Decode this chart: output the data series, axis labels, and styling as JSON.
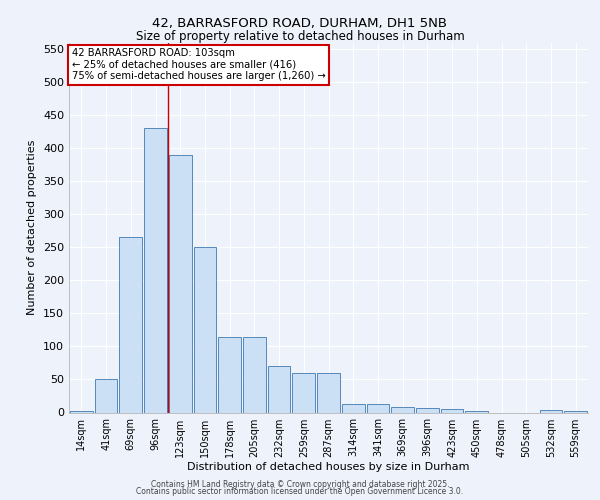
{
  "title_line1": "42, BARRASFORD ROAD, DURHAM, DH1 5NB",
  "title_line2": "Size of property relative to detached houses in Durham",
  "xlabel": "Distribution of detached houses by size in Durham",
  "ylabel": "Number of detached properties",
  "bar_labels": [
    "14sqm",
    "41sqm",
    "69sqm",
    "96sqm",
    "123sqm",
    "150sqm",
    "178sqm",
    "205sqm",
    "232sqm",
    "259sqm",
    "287sqm",
    "314sqm",
    "341sqm",
    "369sqm",
    "396sqm",
    "423sqm",
    "450sqm",
    "478sqm",
    "505sqm",
    "532sqm",
    "559sqm"
  ],
  "bar_values": [
    3,
    50,
    265,
    430,
    390,
    250,
    115,
    115,
    70,
    60,
    60,
    13,
    13,
    8,
    7,
    5,
    2,
    0,
    0,
    4,
    3
  ],
  "bar_color": "#cce0f5",
  "bar_edge_color": "#5588bb",
  "background_color": "#eef2fb",
  "grid_color": "#ffffff",
  "red_line_x": 3.5,
  "annotation_title": "42 BARRASFORD ROAD: 103sqm",
  "annotation_line2": "← 25% of detached houses are smaller (416)",
  "annotation_line3": "75% of semi-detached houses are larger (1,260) →",
  "annotation_box_color": "#ffffff",
  "annotation_border_color": "#cc0000",
  "red_line_color": "#cc0000",
  "ylim": [
    0,
    560
  ],
  "yticks": [
    0,
    50,
    100,
    150,
    200,
    250,
    300,
    350,
    400,
    450,
    500,
    550
  ],
  "footer_line1": "Contains HM Land Registry data © Crown copyright and database right 2025.",
  "footer_line2": "Contains public sector information licensed under the Open Government Licence 3.0."
}
